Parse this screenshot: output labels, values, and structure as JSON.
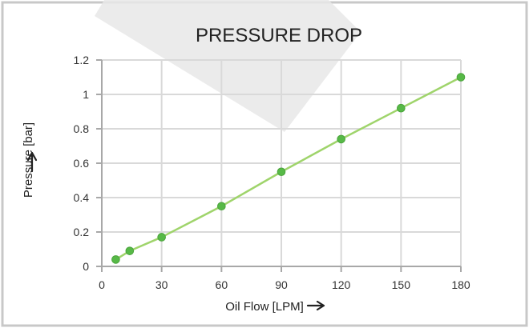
{
  "colors": {
    "frame": "#c8c8c8",
    "plot_border": "#a8a8a8",
    "grid": "#d9d9d9",
    "line": "#9fd46b",
    "marker": "#57b947",
    "watermark": "#e8e8e8"
  },
  "chart_data": {
    "type": "line",
    "title": "PRESSURE DROP",
    "xlabel": "Oil Flow [LPM]",
    "ylabel": "Pressure [bar]",
    "xlim": [
      0,
      180
    ],
    "ylim": [
      0,
      1.2
    ],
    "x_ticks": [
      "0",
      "30",
      "60",
      "90",
      "120",
      "150",
      "180"
    ],
    "y_ticks": [
      "0",
      "0.2",
      "0.4",
      "0.6",
      "0.8",
      "1",
      "1.2"
    ],
    "grid": true,
    "legend": "none",
    "series": [
      {
        "x": [
          7,
          14,
          30,
          60,
          90,
          120,
          150,
          180
        ],
        "y": [
          0.04,
          0.09,
          0.17,
          0.35,
          0.55,
          0.74,
          0.92,
          1.1
        ]
      }
    ]
  }
}
